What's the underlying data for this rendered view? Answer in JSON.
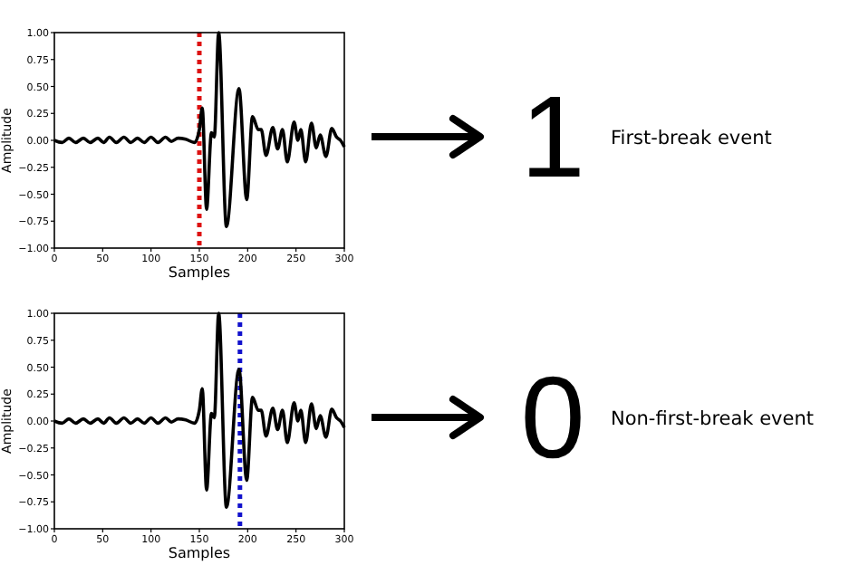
{
  "chart_data": [
    {
      "type": "line",
      "xlabel": "Samples",
      "ylabel": "Amplitude",
      "xlim": [
        0,
        300
      ],
      "ylim": [
        -1,
        1
      ],
      "xticks": [
        0,
        50,
        100,
        150,
        200,
        250,
        300
      ],
      "yticks": [
        {
          "value": -1,
          "label": "−1.00"
        },
        {
          "value": -0.75,
          "label": "−0.75"
        },
        {
          "value": -0.5,
          "label": "−0.50"
        },
        {
          "value": -0.25,
          "label": "−0.25"
        },
        {
          "value": 0,
          "label": "0.00"
        },
        {
          "value": 0.25,
          "label": "0.25"
        },
        {
          "value": 0.5,
          "label": "0.50"
        },
        {
          "value": 0.75,
          "label": "0.75"
        },
        {
          "value": 1,
          "label": "1.00"
        }
      ],
      "x": [
        0,
        8,
        15,
        22,
        30,
        37,
        45,
        51,
        57,
        64,
        72,
        79,
        86,
        93,
        100,
        107,
        115,
        121,
        128,
        136,
        145,
        150,
        153,
        157.5,
        162.5,
        165.5,
        170,
        178,
        191,
        199,
        205,
        211,
        214,
        219,
        226,
        231,
        236,
        241,
        248,
        252,
        255,
        260,
        266,
        271,
        275,
        281,
        287,
        292,
        296,
        300
      ],
      "values": [
        0,
        -0.02,
        0.02,
        -0.02,
        0.02,
        -0.02,
        0.02,
        -0.02,
        0.03,
        -0.02,
        0.03,
        -0.02,
        0.02,
        -0.02,
        0.03,
        -0.02,
        0.03,
        -0.01,
        0.02,
        0.01,
        -0.02,
        0.1,
        0.3,
        -0.64,
        0.07,
        0.03,
        1,
        -0.8,
        0.48,
        -0.55,
        0.22,
        0.1,
        0.1,
        -0.14,
        0.12,
        -0.08,
        0.1,
        -0.2,
        0.17,
        0,
        0.1,
        -0.2,
        0.16,
        -0.07,
        0.05,
        -0.15,
        0.11,
        0.03,
        0,
        -0.06
      ],
      "color": "#000000",
      "ref_lines": [
        {
          "axis": "x",
          "value": 150,
          "color": "#dd1111",
          "line_style": "dotted"
        }
      ],
      "annotations": [
        "1",
        "First-break event"
      ]
    },
    {
      "type": "line",
      "xlabel": "Samples",
      "ylabel": "Amplitude",
      "xlim": [
        0,
        300
      ],
      "ylim": [
        -1,
        1
      ],
      "xticks": [
        0,
        50,
        100,
        150,
        200,
        250,
        300
      ],
      "yticks": [
        {
          "value": -1,
          "label": "−1.00"
        },
        {
          "value": -0.75,
          "label": "−0.75"
        },
        {
          "value": -0.5,
          "label": "−0.50"
        },
        {
          "value": -0.25,
          "label": "−0.25"
        },
        {
          "value": 0,
          "label": "0.00"
        },
        {
          "value": 0.25,
          "label": "0.25"
        },
        {
          "value": 0.5,
          "label": "0.50"
        },
        {
          "value": 0.75,
          "label": "0.75"
        },
        {
          "value": 1,
          "label": "1.00"
        }
      ],
      "x": [
        0,
        8,
        15,
        22,
        30,
        37,
        45,
        51,
        57,
        64,
        72,
        79,
        86,
        93,
        100,
        107,
        115,
        121,
        128,
        136,
        145,
        150,
        153,
        157.5,
        162.5,
        165.5,
        170,
        178,
        191,
        199,
        205,
        211,
        214,
        219,
        226,
        231,
        236,
        241,
        248,
        252,
        255,
        260,
        266,
        271,
        275,
        281,
        287,
        292,
        296,
        300
      ],
      "values": [
        0,
        -0.02,
        0.02,
        -0.02,
        0.02,
        -0.02,
        0.02,
        -0.02,
        0.03,
        -0.02,
        0.03,
        -0.02,
        0.02,
        -0.02,
        0.03,
        -0.02,
        0.03,
        -0.01,
        0.02,
        0.01,
        -0.02,
        0.1,
        0.3,
        -0.64,
        0.07,
        0.03,
        1,
        -0.8,
        0.48,
        -0.55,
        0.22,
        0.1,
        0.1,
        -0.14,
        0.12,
        -0.08,
        0.1,
        -0.2,
        0.17,
        0,
        0.1,
        -0.2,
        0.16,
        -0.07,
        0.05,
        -0.15,
        0.11,
        0.03,
        0,
        -0.06
      ],
      "color": "#000000",
      "ref_lines": [
        {
          "axis": "x",
          "value": 192,
          "color": "#1111cc",
          "line_style": "dotted"
        }
      ],
      "annotations": [
        "0",
        "Non-first-break event"
      ]
    }
  ]
}
